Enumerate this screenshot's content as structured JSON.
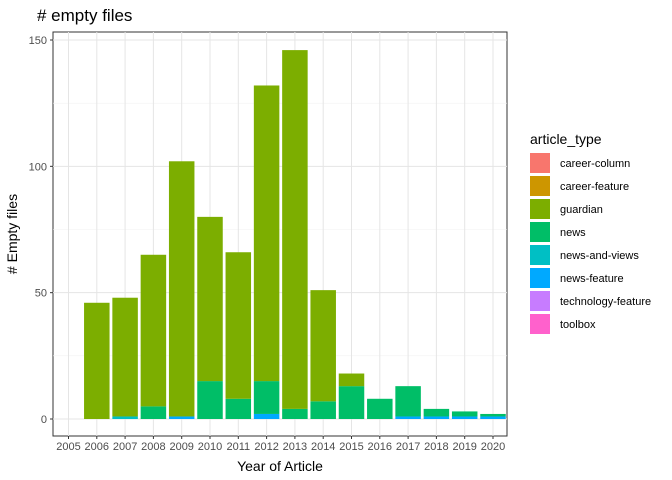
{
  "chart_data": {
    "type": "bar",
    "stacked": true,
    "title": "# empty files",
    "xlabel": "Year of Article",
    "ylabel": "# Empty files",
    "ylim": [
      0,
      155
    ],
    "yticks": [
      0,
      50,
      100,
      150
    ],
    "grid": true,
    "legend_title": "article_type",
    "legend_position": "right",
    "categories": [
      "2005",
      "2006",
      "2007",
      "2008",
      "2009",
      "2010",
      "2011",
      "2012",
      "2013",
      "2014",
      "2015",
      "2016",
      "2017",
      "2018",
      "2019",
      "2020"
    ],
    "series": [
      {
        "name": "career-column",
        "color": "#F8766D",
        "values": [
          0,
          0,
          0,
          0,
          0,
          0,
          0,
          0,
          0,
          0,
          0,
          0,
          0,
          0,
          0,
          0
        ]
      },
      {
        "name": "career-feature",
        "color": "#CD9600",
        "values": [
          0,
          0,
          0,
          0,
          0,
          0,
          0,
          0,
          0,
          0,
          0,
          0,
          0,
          0,
          0,
          0
        ]
      },
      {
        "name": "guardian",
        "color": "#7CAE00",
        "values": [
          0,
          46,
          47,
          60,
          101,
          65,
          58,
          117,
          142,
          44,
          5,
          0,
          0,
          0,
          0,
          0
        ]
      },
      {
        "name": "news",
        "color": "#00BE67",
        "values": [
          0,
          0,
          0,
          5,
          0,
          15,
          8,
          13,
          4,
          7,
          13,
          8,
          12,
          3,
          2,
          1
        ]
      },
      {
        "name": "news-and-views",
        "color": "#00BFC4",
        "values": [
          0,
          0,
          1,
          0,
          0,
          0,
          0,
          0,
          0,
          0,
          0,
          0,
          0,
          0,
          0,
          0
        ]
      },
      {
        "name": "news-feature",
        "color": "#00A9FF",
        "values": [
          0,
          0,
          0,
          0,
          1,
          0,
          0,
          2,
          0,
          0,
          0,
          0,
          1,
          1,
          1,
          1
        ]
      },
      {
        "name": "technology-feature",
        "color": "#C77CFF",
        "values": [
          0,
          0,
          0,
          0,
          0,
          0,
          0,
          0,
          0,
          0,
          0,
          0,
          0,
          0,
          0,
          0
        ]
      },
      {
        "name": "toolbox",
        "color": "#FF61CC",
        "values": [
          0,
          0,
          0,
          0,
          0,
          0,
          0,
          0,
          0,
          0,
          0,
          0,
          0,
          0,
          0,
          0
        ]
      }
    ]
  }
}
